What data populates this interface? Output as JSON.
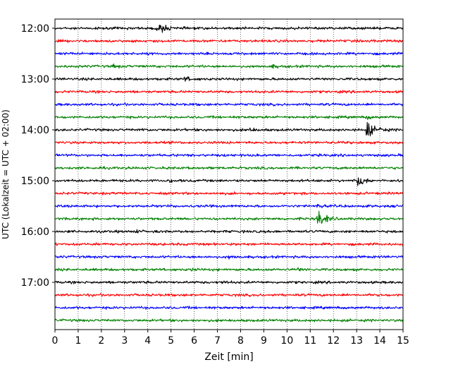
{
  "chart_data": {
    "type": "line",
    "title": "",
    "xlabel": "Zeit  [min]",
    "ylabel": "UTC (Lokalzeit = UTC + 02:00)",
    "xlim": [
      0,
      15
    ],
    "x_ticks": [
      0,
      1,
      2,
      3,
      4,
      5,
      6,
      7,
      8,
      9,
      10,
      11,
      12,
      13,
      14,
      15
    ],
    "y_tick_labels": [
      "12:00",
      "13:00",
      "14:00",
      "15:00",
      "16:00",
      "17:00"
    ],
    "row_start": "12:00",
    "row_end": "17:45",
    "row_interval_minutes": 15,
    "color_cycle": [
      "#000000",
      "#ff0000",
      "#0000ff",
      "#008000"
    ],
    "grid": "vertical dotted at each minute",
    "series": [
      {
        "row": "12:00",
        "color": "#000000",
        "events": [
          {
            "t": 4.5,
            "amp": 1.6
          },
          {
            "t": 4.3,
            "amp": 0.5
          }
        ]
      },
      {
        "row": "12:15",
        "color": "#ff0000",
        "events": []
      },
      {
        "row": "12:30",
        "color": "#0000ff",
        "events": []
      },
      {
        "row": "12:45",
        "color": "#008000",
        "events": [
          {
            "t": 2.5,
            "amp": 0.45
          },
          {
            "t": 9.3,
            "amp": 0.4
          }
        ]
      },
      {
        "row": "13:00",
        "color": "#000000",
        "events": [
          {
            "t": 5.6,
            "amp": 0.6
          }
        ]
      },
      {
        "row": "13:15",
        "color": "#ff0000",
        "events": []
      },
      {
        "row": "13:30",
        "color": "#0000ff",
        "events": []
      },
      {
        "row": "13:45",
        "color": "#008000",
        "events": [
          {
            "t": 13.4,
            "amp": 0.5
          }
        ]
      },
      {
        "row": "14:00",
        "color": "#000000",
        "events": [
          {
            "t": 13.45,
            "amp": 3.0
          },
          {
            "t": 8.4,
            "amp": 0.4
          },
          {
            "t": 14.0,
            "amp": 0.5
          },
          {
            "t": 3.7,
            "amp": 0.3
          }
        ]
      },
      {
        "row": "14:15",
        "color": "#ff0000",
        "events": []
      },
      {
        "row": "14:30",
        "color": "#0000ff",
        "events": []
      },
      {
        "row": "14:45",
        "color": "#008000",
        "events": []
      },
      {
        "row": "15:00",
        "color": "#000000",
        "events": [
          {
            "t": 13.1,
            "amp": 1.7
          },
          {
            "t": 12.9,
            "amp": 0.6
          },
          {
            "t": 4.9,
            "amp": 0.3
          }
        ]
      },
      {
        "row": "15:15",
        "color": "#ff0000",
        "events": []
      },
      {
        "row": "15:30",
        "color": "#0000ff",
        "events": [
          {
            "t": 11.3,
            "amp": 0.4
          }
        ]
      },
      {
        "row": "15:45",
        "color": "#008000",
        "events": [
          {
            "t": 11.3,
            "amp": 2.8
          },
          {
            "t": 11.7,
            "amp": 0.5
          }
        ]
      },
      {
        "row": "16:00",
        "color": "#000000",
        "events": [
          {
            "t": 3.5,
            "amp": 0.3
          }
        ]
      },
      {
        "row": "16:15",
        "color": "#ff0000",
        "events": []
      },
      {
        "row": "16:30",
        "color": "#0000ff",
        "events": [
          {
            "t": 7.5,
            "amp": 0.3
          }
        ]
      },
      {
        "row": "16:45",
        "color": "#008000",
        "events": [
          {
            "t": 10.4,
            "amp": 0.4
          },
          {
            "t": 5.8,
            "amp": 0.3
          }
        ]
      },
      {
        "row": "17:00",
        "color": "#000000",
        "events": [
          {
            "t": 7.2,
            "amp": 0.3
          }
        ]
      },
      {
        "row": "17:15",
        "color": "#ff0000",
        "events": []
      },
      {
        "row": "17:30",
        "color": "#0000ff",
        "events": []
      },
      {
        "row": "17:45",
        "color": "#008000",
        "events": []
      }
    ]
  }
}
